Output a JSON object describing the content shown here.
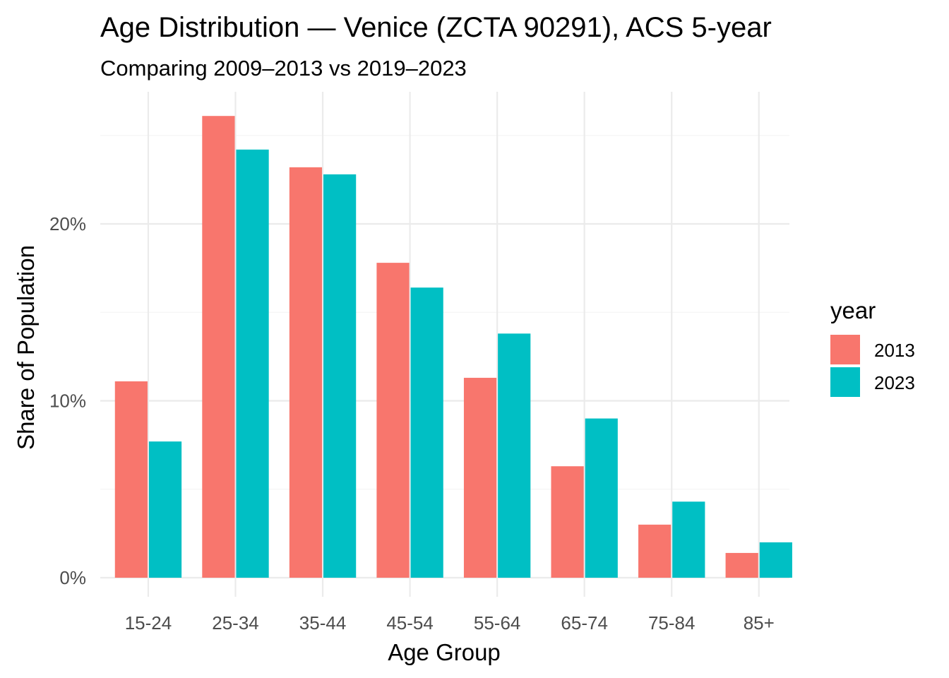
{
  "chart_data": {
    "type": "bar",
    "title": "Age Distribution — Venice (ZCTA 90291), ACS 5-year",
    "subtitle": "Comparing 2009–2013 vs 2019–2023",
    "xlabel": "Age Group",
    "ylabel": "Share of Population",
    "categories": [
      "15-24",
      "25-34",
      "35-44",
      "45-54",
      "55-64",
      "65-74",
      "75-84",
      "85+"
    ],
    "series": [
      {
        "name": "2013",
        "color": "#F8766D",
        "values": [
          11.1,
          26.1,
          23.2,
          17.8,
          11.3,
          6.3,
          3.0,
          1.4
        ]
      },
      {
        "name": "2023",
        "color": "#00BFC4",
        "values": [
          7.7,
          24.2,
          22.8,
          16.4,
          13.8,
          9.0,
          4.3,
          2.0
        ]
      }
    ],
    "ylim": [
      -1,
      27
    ],
    "yticks": [
      0,
      10,
      20
    ],
    "ytick_labels": [
      "0%",
      "10%",
      "20%"
    ],
    "legend": {
      "title": "year",
      "position": "right"
    },
    "grid": true
  }
}
